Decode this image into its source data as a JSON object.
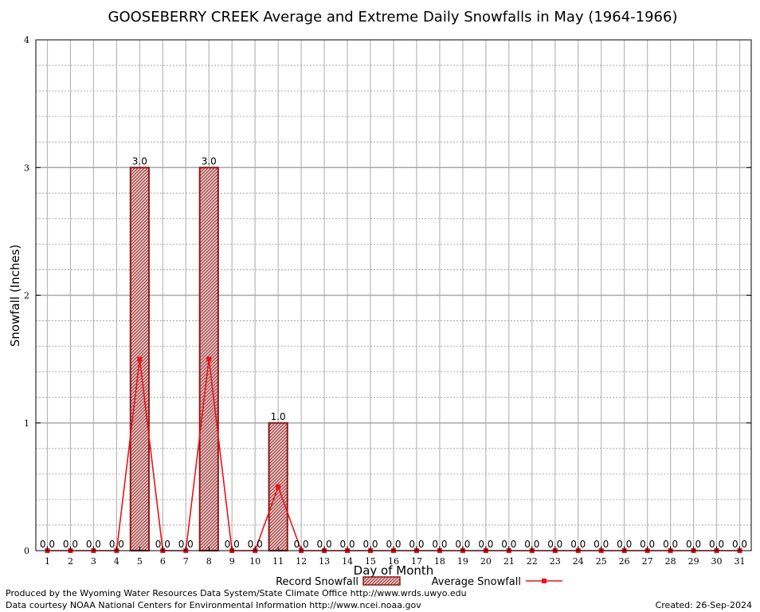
{
  "chart_data": {
    "type": "bar",
    "title": "GOOSEBERRY CREEK Average and Extreme Daily Snowfalls in May (1964-1966)",
    "xlabel": "Day of Month",
    "ylabel": "Snowfall (Inches)",
    "ylim": [
      0,
      4
    ],
    "yticks": [
      "0",
      "1",
      "2",
      "3",
      "4"
    ],
    "grid": true,
    "categories": [
      "1",
      "2",
      "3",
      "4",
      "5",
      "6",
      "7",
      "8",
      "9",
      "10",
      "11",
      "12",
      "13",
      "14",
      "15",
      "16",
      "17",
      "18",
      "19",
      "20",
      "21",
      "22",
      "23",
      "24",
      "25",
      "26",
      "27",
      "28",
      "29",
      "30",
      "31"
    ],
    "series": [
      {
        "name": "Record Snowfall",
        "kind": "bar",
        "color": "#8b1a1a",
        "values": [
          0,
          0,
          0,
          0,
          3.0,
          0,
          0,
          3.0,
          0,
          0,
          1.0,
          0,
          0,
          0,
          0,
          0,
          0,
          0,
          0,
          0,
          0,
          0,
          0,
          0,
          0,
          0,
          0,
          0,
          0,
          0,
          0
        ],
        "labels": [
          "0.0",
          "0.0",
          "0.0",
          "0.0",
          "3.0",
          "0.0",
          "0.0",
          "3.0",
          "0.0",
          "0.0",
          "1.0",
          "0.0",
          "0.0",
          "0.0",
          "0.0",
          "0.0",
          "0.0",
          "0.0",
          "0.0",
          "0.0",
          "0.0",
          "0.0",
          "0.0",
          "0.0",
          "0.0",
          "0.0",
          "0.0",
          "0.0",
          "0.0",
          "0.0",
          "0.0"
        ]
      },
      {
        "name": "Average Snowfall",
        "kind": "line",
        "color": "#e8141c",
        "values": [
          0,
          0,
          0,
          0,
          1.5,
          0,
          0,
          1.5,
          0,
          0,
          0.5,
          0,
          0,
          0,
          0,
          0,
          0,
          0,
          0,
          0,
          0,
          0,
          0,
          0,
          0,
          0,
          0,
          0,
          0,
          0,
          0
        ]
      }
    ],
    "legend_position": "bottom"
  },
  "footer": {
    "line1": "Produced by the Wyoming Water Resources Data System/State Climate Office http://www.wrds.uwyo.edu",
    "line2": "Data courtesy NOAA National Centers for Environmental Information http://www.ncei.noaa.gov",
    "created": "Created:  26-Sep-2024"
  }
}
